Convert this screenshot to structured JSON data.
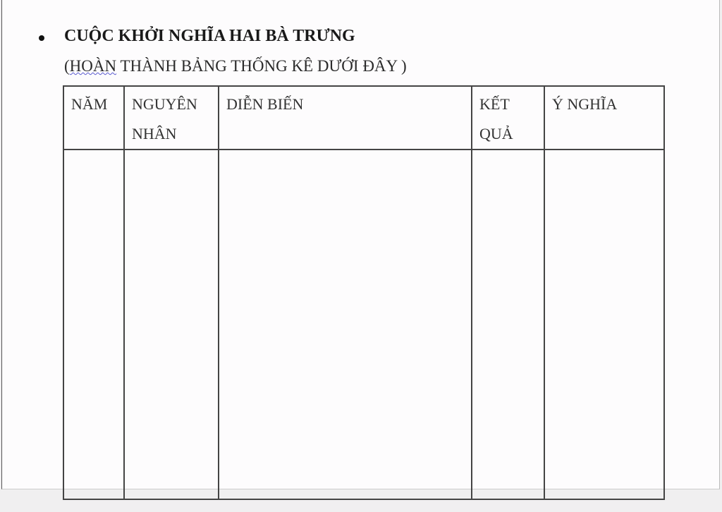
{
  "heading": "CUỘC KHỞI NGHĨA HAI BÀ TRƯNG",
  "instruction": {
    "open": "(",
    "underlined": "HOÀN",
    "rest": " THÀNH BẢNG THỐNG KÊ DƯỚI ĐÂY )"
  },
  "table": {
    "headers": [
      "NĂM",
      "NGUYÊN NHÂN",
      "DIỄN BIẾN",
      "KẾT QUẢ",
      "Ý NGHĨA"
    ],
    "rows": [
      [
        "",
        "",
        "",
        "",
        ""
      ]
    ]
  }
}
